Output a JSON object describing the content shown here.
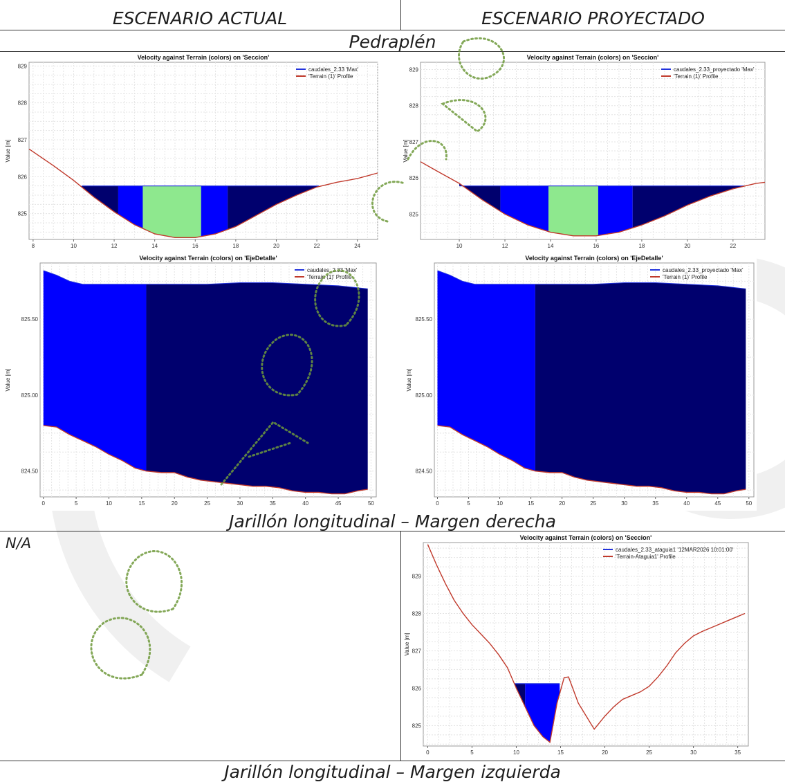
{
  "header": {
    "col_left": "ESCENARIO ACTUAL",
    "col_right": "ESCENARIO PROYECTADO"
  },
  "sections": {
    "pedraplen": "Pedraplén",
    "margen_derecha": "Jarillón longitudinal – Margen derecha",
    "margen_izquierda": "Jarillón longitudinal – Margen izquierda"
  },
  "na_text": "N/A",
  "colors": {
    "water_dark": "#00006e",
    "water_mid": "#0000ff",
    "velocity_high": "#8ee88e",
    "terrain": "#c0392b",
    "legend_blue": "#2233dd"
  },
  "chart_data": [
    {
      "id": "a",
      "type": "area",
      "title": "Velocity against Terrain (colors) on 'Seccion'",
      "ylabel": "Value [m]",
      "xlim": [
        7.8,
        25
      ],
      "ylim": [
        824.3,
        829.1
      ],
      "xticks": [
        8,
        10,
        12,
        14,
        16,
        18,
        20,
        22,
        24
      ],
      "yticks": [
        825,
        826,
        827,
        828,
        829
      ],
      "legend": [
        "caudales_2.33 'Max'",
        "'Terrain (1)' Profile"
      ],
      "water_level": 825.75,
      "terrain": [
        [
          7.8,
          826.75
        ],
        [
          9,
          826.3
        ],
        [
          10,
          825.9
        ],
        [
          11,
          825.45
        ],
        [
          12,
          825.05
        ],
        [
          13,
          824.7
        ],
        [
          14,
          824.45
        ],
        [
          15,
          824.35
        ],
        [
          16,
          824.35
        ],
        [
          17,
          824.45
        ],
        [
          18,
          824.65
        ],
        [
          19,
          824.95
        ],
        [
          20,
          825.25
        ],
        [
          21,
          825.5
        ],
        [
          22,
          825.72
        ],
        [
          23,
          825.85
        ],
        [
          24,
          825.95
        ],
        [
          25,
          826.1
        ]
      ],
      "bands": [
        {
          "x": [
            10.4,
            12.2
          ],
          "c": "dark"
        },
        {
          "x": [
            12.2,
            13.4
          ],
          "c": "mid"
        },
        {
          "x": [
            13.4,
            16.3
          ],
          "c": "high"
        },
        {
          "x": [
            16.3,
            17.6
          ],
          "c": "mid"
        },
        {
          "x": [
            17.6,
            22.1
          ],
          "c": "dark"
        }
      ]
    },
    {
      "id": "b",
      "type": "area",
      "title": "Velocity against Terrain (colors) on 'Seccion'",
      "ylabel": "Value [m]",
      "xlim": [
        8.3,
        23.4
      ],
      "ylim": [
        824.3,
        829.2
      ],
      "xticks": [
        10,
        12,
        14,
        16,
        18,
        20,
        22
      ],
      "yticks": [
        825,
        826,
        827,
        828,
        829
      ],
      "legend": [
        "caudales_2.33_proyectado 'Max'",
        "'Terrain (1)' Profile"
      ],
      "water_level": 825.78,
      "terrain": [
        [
          8.3,
          826.45
        ],
        [
          9,
          826.2
        ],
        [
          10,
          825.85
        ],
        [
          11,
          825.4
        ],
        [
          12,
          825.0
        ],
        [
          13,
          824.7
        ],
        [
          14,
          824.5
        ],
        [
          15,
          824.4
        ],
        [
          16,
          824.4
        ],
        [
          17,
          824.5
        ],
        [
          18,
          824.7
        ],
        [
          19,
          824.95
        ],
        [
          20,
          825.25
        ],
        [
          21,
          825.5
        ],
        [
          22,
          825.7
        ],
        [
          23,
          825.85
        ],
        [
          23.4,
          825.88
        ]
      ],
      "bands": [
        {
          "x": [
            10.0,
            11.8
          ],
          "c": "dark"
        },
        {
          "x": [
            11.8,
            13.9
          ],
          "c": "mid"
        },
        {
          "x": [
            13.9,
            16.1
          ],
          "c": "high"
        },
        {
          "x": [
            16.1,
            17.6
          ],
          "c": "mid"
        },
        {
          "x": [
            17.6,
            22.5
          ],
          "c": "dark"
        }
      ]
    },
    {
      "id": "c",
      "type": "area",
      "title": "Velocity against Terrain (colors) on 'EjeDetalle'",
      "ylabel": "Value [m]",
      "xlim": [
        -0.5,
        50.8
      ],
      "ylim": [
        824.33,
        825.87
      ],
      "xticks": [
        0,
        5,
        10,
        15,
        20,
        25,
        30,
        35,
        40,
        45,
        50
      ],
      "yticks": [
        824.5,
        825.0,
        825.5
      ],
      "ytick_labels": [
        "824.50",
        "825.00",
        "825.50"
      ],
      "legend": [
        "caudales_2.33 'Max'",
        "'Terrain (1)' Profile"
      ],
      "split_x": 15.7,
      "water": [
        [
          0,
          825.82
        ],
        [
          2,
          825.79
        ],
        [
          4,
          825.75
        ],
        [
          6,
          825.73
        ],
        [
          10,
          825.73
        ],
        [
          15,
          825.73
        ],
        [
          20,
          825.73
        ],
        [
          25,
          825.73
        ],
        [
          30,
          825.74
        ],
        [
          35,
          825.74
        ],
        [
          40,
          825.73
        ],
        [
          45,
          825.72
        ],
        [
          49.5,
          825.7
        ]
      ],
      "terrain": [
        [
          0,
          824.8
        ],
        [
          2,
          824.79
        ],
        [
          4,
          824.74
        ],
        [
          6,
          824.7
        ],
        [
          8,
          824.66
        ],
        [
          10,
          824.61
        ],
        [
          12,
          824.57
        ],
        [
          14,
          824.52
        ],
        [
          15.7,
          824.5
        ],
        [
          18,
          824.49
        ],
        [
          20,
          824.49
        ],
        [
          22,
          824.46
        ],
        [
          24,
          824.44
        ],
        [
          26,
          824.43
        ],
        [
          28,
          824.42
        ],
        [
          30,
          824.41
        ],
        [
          32,
          824.4
        ],
        [
          34,
          824.4
        ],
        [
          36,
          824.39
        ],
        [
          38,
          824.37
        ],
        [
          40,
          824.36
        ],
        [
          42,
          824.36
        ],
        [
          44,
          824.35
        ],
        [
          46,
          824.35
        ],
        [
          48,
          824.37
        ],
        [
          49.5,
          824.38
        ]
      ]
    },
    {
      "id": "d",
      "type": "area",
      "title": "Velocity against Terrain (colors) on 'EjeDetalle'",
      "ylabel": "Value [m]",
      "xlim": [
        -0.5,
        50.8
      ],
      "ylim": [
        824.33,
        825.87
      ],
      "xticks": [
        0,
        5,
        10,
        15,
        20,
        25,
        30,
        35,
        40,
        45,
        50
      ],
      "yticks": [
        824.5,
        825.0,
        825.5
      ],
      "ytick_labels": [
        "824.50",
        "825.00",
        "825.50"
      ],
      "legend": [
        "caudales_2.33_proyectado 'Max'",
        "'Terrain (1)' Profile"
      ],
      "split_x": 15.7,
      "water": [
        [
          0,
          825.82
        ],
        [
          2,
          825.79
        ],
        [
          4,
          825.75
        ],
        [
          6,
          825.73
        ],
        [
          10,
          825.73
        ],
        [
          15,
          825.73
        ],
        [
          20,
          825.73
        ],
        [
          25,
          825.73
        ],
        [
          30,
          825.74
        ],
        [
          35,
          825.74
        ],
        [
          40,
          825.73
        ],
        [
          45,
          825.72
        ],
        [
          49.5,
          825.7
        ]
      ],
      "terrain": [
        [
          0,
          824.8
        ],
        [
          2,
          824.79
        ],
        [
          4,
          824.74
        ],
        [
          6,
          824.7
        ],
        [
          8,
          824.66
        ],
        [
          10,
          824.61
        ],
        [
          12,
          824.57
        ],
        [
          14,
          824.52
        ],
        [
          15.7,
          824.5
        ],
        [
          18,
          824.49
        ],
        [
          20,
          824.49
        ],
        [
          22,
          824.46
        ],
        [
          24,
          824.44
        ],
        [
          26,
          824.43
        ],
        [
          28,
          824.42
        ],
        [
          30,
          824.41
        ],
        [
          32,
          824.4
        ],
        [
          34,
          824.4
        ],
        [
          36,
          824.39
        ],
        [
          38,
          824.37
        ],
        [
          40,
          824.36
        ],
        [
          42,
          824.36
        ],
        [
          44,
          824.35
        ],
        [
          46,
          824.35
        ],
        [
          48,
          824.37
        ],
        [
          49.5,
          824.38
        ]
      ]
    },
    {
      "id": "e",
      "type": "area",
      "title": "Velocity against Terrain (colors) on 'Seccion'",
      "ylabel": "Value [m]",
      "xlim": [
        -0.5,
        36.2
      ],
      "ylim": [
        824.45,
        829.9
      ],
      "xticks": [
        0,
        5,
        10,
        15,
        20,
        25,
        30,
        35
      ],
      "yticks": [
        825,
        826,
        827,
        828,
        829
      ],
      "legend": [
        "caudales_2.33_ataguia1 '12MAR2026 10:01:00'",
        "'Terrain-Ataguia1' Profile"
      ],
      "water_level": 826.12,
      "terrain": [
        [
          0,
          829.85
        ],
        [
          1,
          829.3
        ],
        [
          2,
          828.8
        ],
        [
          3,
          828.35
        ],
        [
          4,
          828.0
        ],
        [
          5,
          827.7
        ],
        [
          6,
          827.45
        ],
        [
          7,
          827.2
        ],
        [
          8,
          826.9
        ],
        [
          9,
          826.55
        ],
        [
          10,
          826.0
        ],
        [
          11,
          825.5
        ],
        [
          12,
          825.0
        ],
        [
          13,
          824.7
        ],
        [
          13.8,
          824.55
        ],
        [
          14.6,
          825.6
        ],
        [
          15.4,
          826.28
        ],
        [
          15.9,
          826.3
        ],
        [
          17,
          825.6
        ],
        [
          18.8,
          824.9
        ],
        [
          20,
          825.25
        ],
        [
          21,
          825.5
        ],
        [
          22,
          825.7
        ],
        [
          23,
          825.8
        ],
        [
          24,
          825.9
        ],
        [
          25,
          826.05
        ],
        [
          26,
          826.3
        ],
        [
          27,
          826.6
        ],
        [
          28,
          826.95
        ],
        [
          29,
          827.2
        ],
        [
          30,
          827.4
        ],
        [
          31,
          827.52
        ],
        [
          32,
          827.62
        ],
        [
          33,
          827.72
        ],
        [
          34,
          827.82
        ],
        [
          35,
          827.92
        ],
        [
          35.8,
          828.0
        ]
      ],
      "bands": [
        {
          "x": [
            9.8,
            11.0
          ],
          "c": "dark"
        },
        {
          "x": [
            11.0,
            14.9
          ],
          "c": "mid"
        }
      ]
    }
  ]
}
